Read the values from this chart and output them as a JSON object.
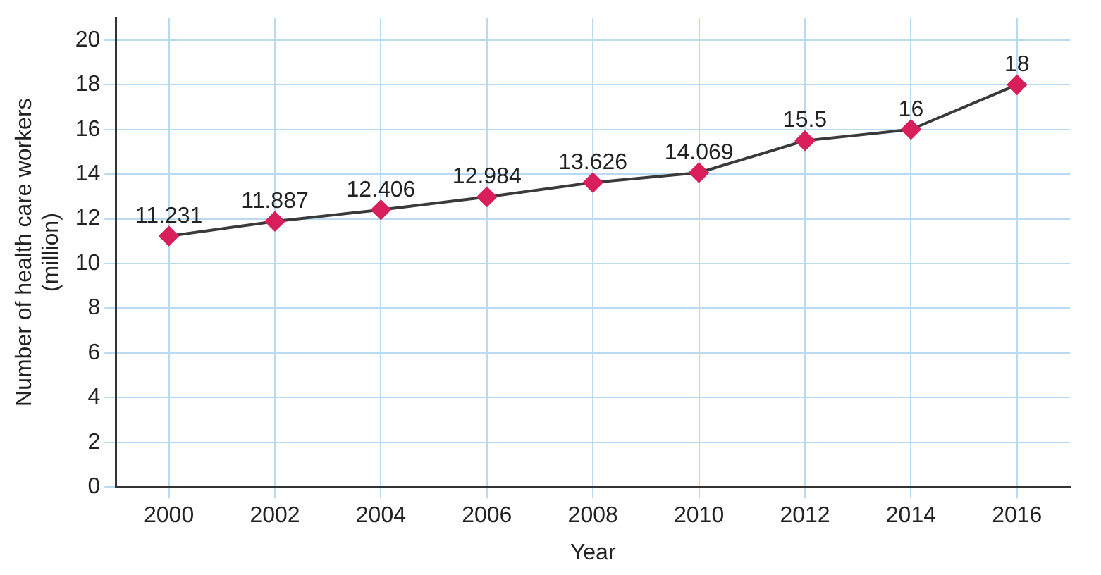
{
  "chart_data": {
    "type": "line",
    "xlabel": "Year",
    "ylabel": "Number of health care workers\n(million)",
    "categories": [
      "2000",
      "2002",
      "2004",
      "2006",
      "2008",
      "2010",
      "2012",
      "2014",
      "2016"
    ],
    "series": [
      {
        "color": "#d81e5b",
        "values": [
          11.231,
          11.887,
          12.406,
          12.984,
          13.626,
          14.069,
          15.5,
          16,
          18
        ]
      }
    ],
    "ylim": [
      0,
      21
    ],
    "yticks": [
      0,
      2,
      4,
      6,
      8,
      10,
      12,
      14,
      16,
      18,
      20
    ],
    "grid": true,
    "legend": false,
    "marker": "diamond",
    "line_style": "solid",
    "data_labels": true
  }
}
